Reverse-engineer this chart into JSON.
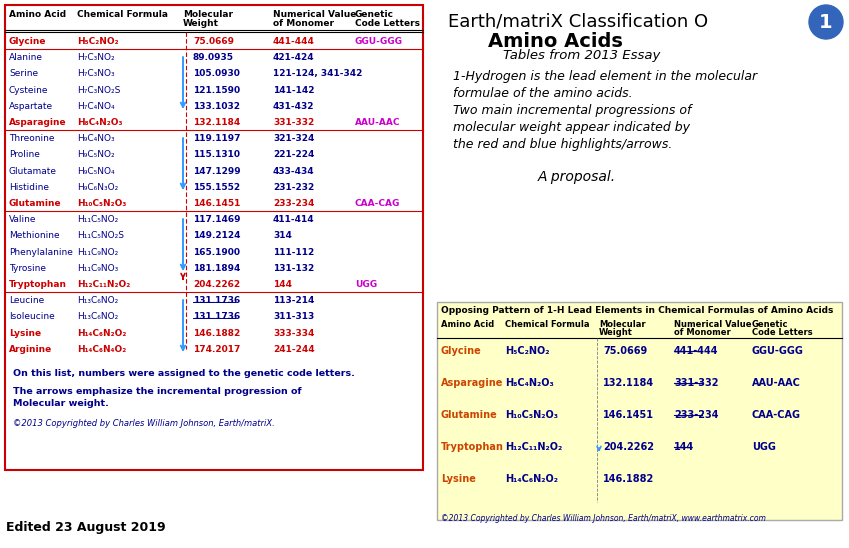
{
  "bg_color": "#ffffff",
  "main_border_color": "#cc0000",
  "rows": [
    {
      "name": "Glycine",
      "formula": "H₅C₂NO₂",
      "mw": "75.0669",
      "nv": "441-444",
      "gc": "GGU-GGG",
      "red": true
    },
    {
      "name": "Alanine",
      "formula": "H₇C₃NO₂",
      "mw": "89.0935",
      "nv": "421-424",
      "gc": "",
      "red": false
    },
    {
      "name": "Serine",
      "formula": "H₇C₃NO₃",
      "mw": "105.0930",
      "nv": "121-124, 341-342",
      "gc": "",
      "red": false
    },
    {
      "name": "Cysteine",
      "formula": "H₇C₃NO₂S",
      "mw": "121.1590",
      "nv": "141-142",
      "gc": "",
      "red": false
    },
    {
      "name": "Aspartate",
      "formula": "H₇C₄NO₄",
      "mw": "133.1032",
      "nv": "431-432",
      "gc": "",
      "red": false
    },
    {
      "name": "Asparagine",
      "formula": "H₈C₄N₂O₃",
      "mw": "132.1184",
      "nv": "331-332",
      "gc": "AAU-AAC",
      "red": true
    },
    {
      "name": "Threonine",
      "formula": "H₉C₄NO₃",
      "mw": "119.1197",
      "nv": "321-324",
      "gc": "",
      "red": false
    },
    {
      "name": "Proline",
      "formula": "H₉C₅NO₂",
      "mw": "115.1310",
      "nv": "221-224",
      "gc": "",
      "red": false
    },
    {
      "name": "Glutamate",
      "formula": "H₉C₅NO₄",
      "mw": "147.1299",
      "nv": "433-434",
      "gc": "",
      "red": false
    },
    {
      "name": "Histidine",
      "formula": "H₉C₆N₃O₂",
      "mw": "155.1552",
      "nv": "231-232",
      "gc": "",
      "red": false
    },
    {
      "name": "Glutamine",
      "formula": "H₁₀C₅N₂O₃",
      "mw": "146.1451",
      "nv": "233-234",
      "gc": "CAA-CAG",
      "red": true
    },
    {
      "name": "Valine",
      "formula": "H₁₁C₅NO₂",
      "mw": "117.1469",
      "nv": "411-414",
      "gc": "",
      "red": false
    },
    {
      "name": "Methionine",
      "formula": "H₁₁C₅NO₂S",
      "mw": "149.2124",
      "nv": "314",
      "gc": "",
      "red": false
    },
    {
      "name": "Phenylalanine",
      "formula": "H₁₁C₉NO₂",
      "mw": "165.1900",
      "nv": "111-112",
      "gc": "",
      "red": false
    },
    {
      "name": "Tyrosine",
      "formula": "H₁₁C₉NO₃",
      "mw": "181.1894",
      "nv": "131-132",
      "gc": "",
      "red": false
    },
    {
      "name": "Tryptophan",
      "formula": "H₁₂C₁₁N₂O₂",
      "mw": "204.2262",
      "nv": "144",
      "gc": "UGG",
      "red": true
    },
    {
      "name": "Leucine",
      "formula": "H₁₃C₆NO₂",
      "mw": "131.1736",
      "nv": "113-214",
      "gc": "",
      "red": false
    },
    {
      "name": "Isoleucine",
      "formula": "H₁₃C₆NO₂",
      "mw": "131.1736",
      "nv": "311-313",
      "gc": "",
      "red": false
    },
    {
      "name": "Lysine",
      "formula": "H₁₄C₆N₂O₂",
      "mw": "146.1882",
      "nv": "333-334",
      "gc": "",
      "red": true
    },
    {
      "name": "Arginine",
      "formula": "H₁₄C₆N₄O₂",
      "mw": "174.2017",
      "nv": "241-244",
      "gc": "",
      "red": true
    }
  ],
  "right_title1": "Earth/matriX Classification O",
  "right_title2": "Amino Acids",
  "right_subtitle": "Tables from 2013 Essay",
  "right_body1": "1-Hydrogen is the lead element in the molecular",
  "right_body2": "formulae of the amino acids.",
  "right_body3": "Two main incremental progressions of",
  "right_body4": "molecular weight appear indicated by",
  "right_body5": "the red and blue highlights/arrows.",
  "right_proposal": "A proposal.",
  "bottom_left_text1": "On this list, numbers were assigned to the genetic code letters.",
  "bottom_left_text2": "The arrows emphasize the incremental progression of",
  "bottom_left_text3": "Molecular weight.",
  "bottom_left_copyright": "©2013 Copyrighted by Charles William Johnson, Earth/matriX.",
  "edited_text": "Edited 23 August 2019",
  "bottom_right_title": "Opposing Pattern of 1-H Lead Elements in Chemical Formulas of Amino Acids",
  "bottom_right_rows": [
    {
      "name": "Glycine",
      "formula": "H₅C₂NO₂",
      "mw": "75.0669",
      "nv": "441‑444",
      "gc": "GGU-GGG"
    },
    {
      "name": "Asparagine",
      "formula": "H₈C₄N₂O₃",
      "mw": "132.1184",
      "nv": "331‑332",
      "gc": "AAU-AAC"
    },
    {
      "name": "Glutamine",
      "formula": "H₁₀C₅N₂O₃",
      "mw": "146.1451",
      "nv": "233‑234",
      "gc": "CAA-CAG"
    },
    {
      "name": "Tryptophan",
      "formula": "H₁₂C₁₁N₂O₂",
      "mw": "204.2262",
      "nv": "144",
      "gc": "UGG"
    },
    {
      "name": "Lysine",
      "formula": "H₁₄C₆N₂O₂",
      "mw": "146.1882",
      "nv": "",
      "gc": ""
    }
  ],
  "bottom_right_copyright": "©2013 Copyrighted by Charles William Johnson, Earth/matriX, www.earthmatrix.com"
}
